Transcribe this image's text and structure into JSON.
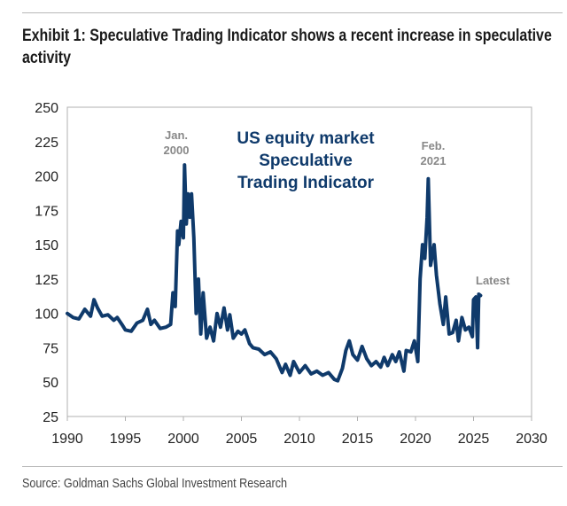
{
  "header": {
    "title": "Exhibit 1: Speculative Trading Indicator shows a recent increase in speculative activity"
  },
  "footer": {
    "source": "Source: Goldman Sachs Global Investment Research"
  },
  "chart_data": {
    "type": "line",
    "title": "",
    "xlabel": "",
    "ylabel": "",
    "xlim": [
      1990,
      2030
    ],
    "ylim": [
      25,
      250
    ],
    "x_ticks": [
      "1990",
      "1995",
      "2000",
      "2005",
      "2010",
      "2015",
      "2020",
      "2025",
      "2030"
    ],
    "y_ticks": [
      "25",
      "50",
      "75",
      "100",
      "125",
      "150",
      "175",
      "200",
      "225",
      "250"
    ],
    "grid": false,
    "line_color": "#0f3a6b",
    "annotations": {
      "series_label": [
        "US equity market",
        "Speculative",
        "Trading Indicator"
      ],
      "peak_2000": [
        "Jan.",
        "2000"
      ],
      "peak_2021": [
        "Feb.",
        "2021"
      ],
      "latest": "Latest"
    },
    "series": [
      {
        "x": [
          1990,
          1990.5,
          1991,
          1991.5,
          1992,
          1992.3,
          1992.6,
          1993,
          1993.5,
          1994,
          1994.3,
          1994.7,
          1995,
          1995.5,
          1996,
          1996.5,
          1996.9,
          1997.2,
          1997.5,
          1998,
          1998.5,
          1998.9,
          1999.1,
          1999.3,
          1999.5,
          1999.6,
          1999.8,
          2000.0,
          2000.1,
          2000.25,
          2000.4,
          2000.55,
          2000.7,
          2000.9,
          2001.1,
          2001.3,
          2001.5,
          2001.7,
          2002,
          2002.3,
          2002.6,
          2002.9,
          2003.2,
          2003.5,
          2003.8,
          2004,
          2004.3,
          2004.7,
          2005,
          2005.3,
          2005.7,
          2006,
          2006.5,
          2007,
          2007.5,
          2008,
          2008.5,
          2008.8,
          2009.2,
          2009.5,
          2010,
          2010.5,
          2011,
          2011.5,
          2012,
          2012.5,
          2013,
          2013.3,
          2013.7,
          2014,
          2014.3,
          2014.6,
          2015,
          2015.4,
          2015.8,
          2016.2,
          2016.6,
          2017,
          2017.3,
          2017.6,
          2018,
          2018.3,
          2018.6,
          2019,
          2019.2,
          2019.6,
          2019.9,
          2020.2,
          2020.4,
          2020.6,
          2020.8,
          2021.0,
          2021.1,
          2021.3,
          2021.6,
          2021.8,
          2022.1,
          2022.4,
          2022.6,
          2022.9,
          2023.2,
          2023.5,
          2023.7,
          2024,
          2024.3,
          2024.6,
          2024.9,
          2025.0,
          2025.2,
          2025.35,
          2025.45,
          2025.6
        ],
        "y": [
          100,
          97,
          96,
          103,
          98,
          110,
          104,
          98,
          99,
          95,
          97,
          92,
          88,
          87,
          93,
          95,
          103,
          92,
          95,
          89,
          90,
          92,
          115,
          105,
          160,
          150,
          167,
          155,
          208,
          165,
          187,
          170,
          187,
          155,
          100,
          125,
          85,
          115,
          82,
          90,
          80,
          100,
          90,
          104,
          88,
          99,
          82,
          87,
          85,
          88,
          78,
          75,
          74,
          70,
          72,
          67,
          57,
          63,
          55,
          65,
          57,
          62,
          56,
          58,
          55,
          57,
          52,
          51,
          60,
          73,
          80,
          70,
          66,
          76,
          67,
          62,
          65,
          61,
          68,
          62,
          70,
          65,
          72,
          58,
          73,
          72,
          80,
          65,
          125,
          150,
          140,
          170,
          198,
          135,
          150,
          128,
          107,
          92,
          112,
          85,
          86,
          95,
          80,
          97,
          88,
          90,
          83,
          110,
          112,
          75,
          114,
          113
        ]
      }
    ]
  }
}
